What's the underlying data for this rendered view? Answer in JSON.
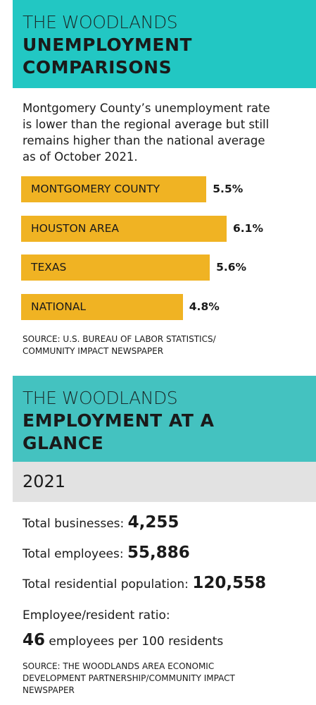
{
  "chart_data": {
    "type": "bar",
    "orientation": "horizontal",
    "kicker": "THE WOODLANDS",
    "title": "UNEMPLOYMENT COMPARISONS",
    "subtitle": "Montgomery County’s unemployment rate is lower than the regional average but still remains higher than the national average as of October 2021.",
    "categories": [
      "MONTGOMERY COUNTY",
      "HOUSTON AREA",
      "TEXAS",
      "NATIONAL"
    ],
    "values": [
      5.5,
      6.1,
      5.6,
      4.8
    ],
    "value_labels": [
      "5.5%",
      "6.1%",
      "5.6%",
      "4.8%"
    ],
    "color": "#f0b323",
    "source": "SOURCE: U.S. BUREAU OF LABOR STATISTICS/ COMMUNITY IMPACT NEWSPAPER"
  },
  "employment": {
    "kicker": "THE WOODLANDS",
    "title": "EMPLOYMENT AT A GLANCE",
    "year": "2021",
    "stats": [
      {
        "label": "Total businesses:",
        "value": "4,255"
      },
      {
        "label": "Total employees:",
        "value": "55,886"
      },
      {
        "label": "Total residential population:",
        "value": "120,558"
      }
    ],
    "ratio": {
      "label": "Employee/resident ratio:",
      "value": "46",
      "unit": "employees per 100 residents"
    },
    "source": "SOURCE: THE WOODLANDS AREA ECONOMIC DEVELOPMENT PARTNERSHIP/COMMUNITY IMPACT NEWSPAPER"
  }
}
